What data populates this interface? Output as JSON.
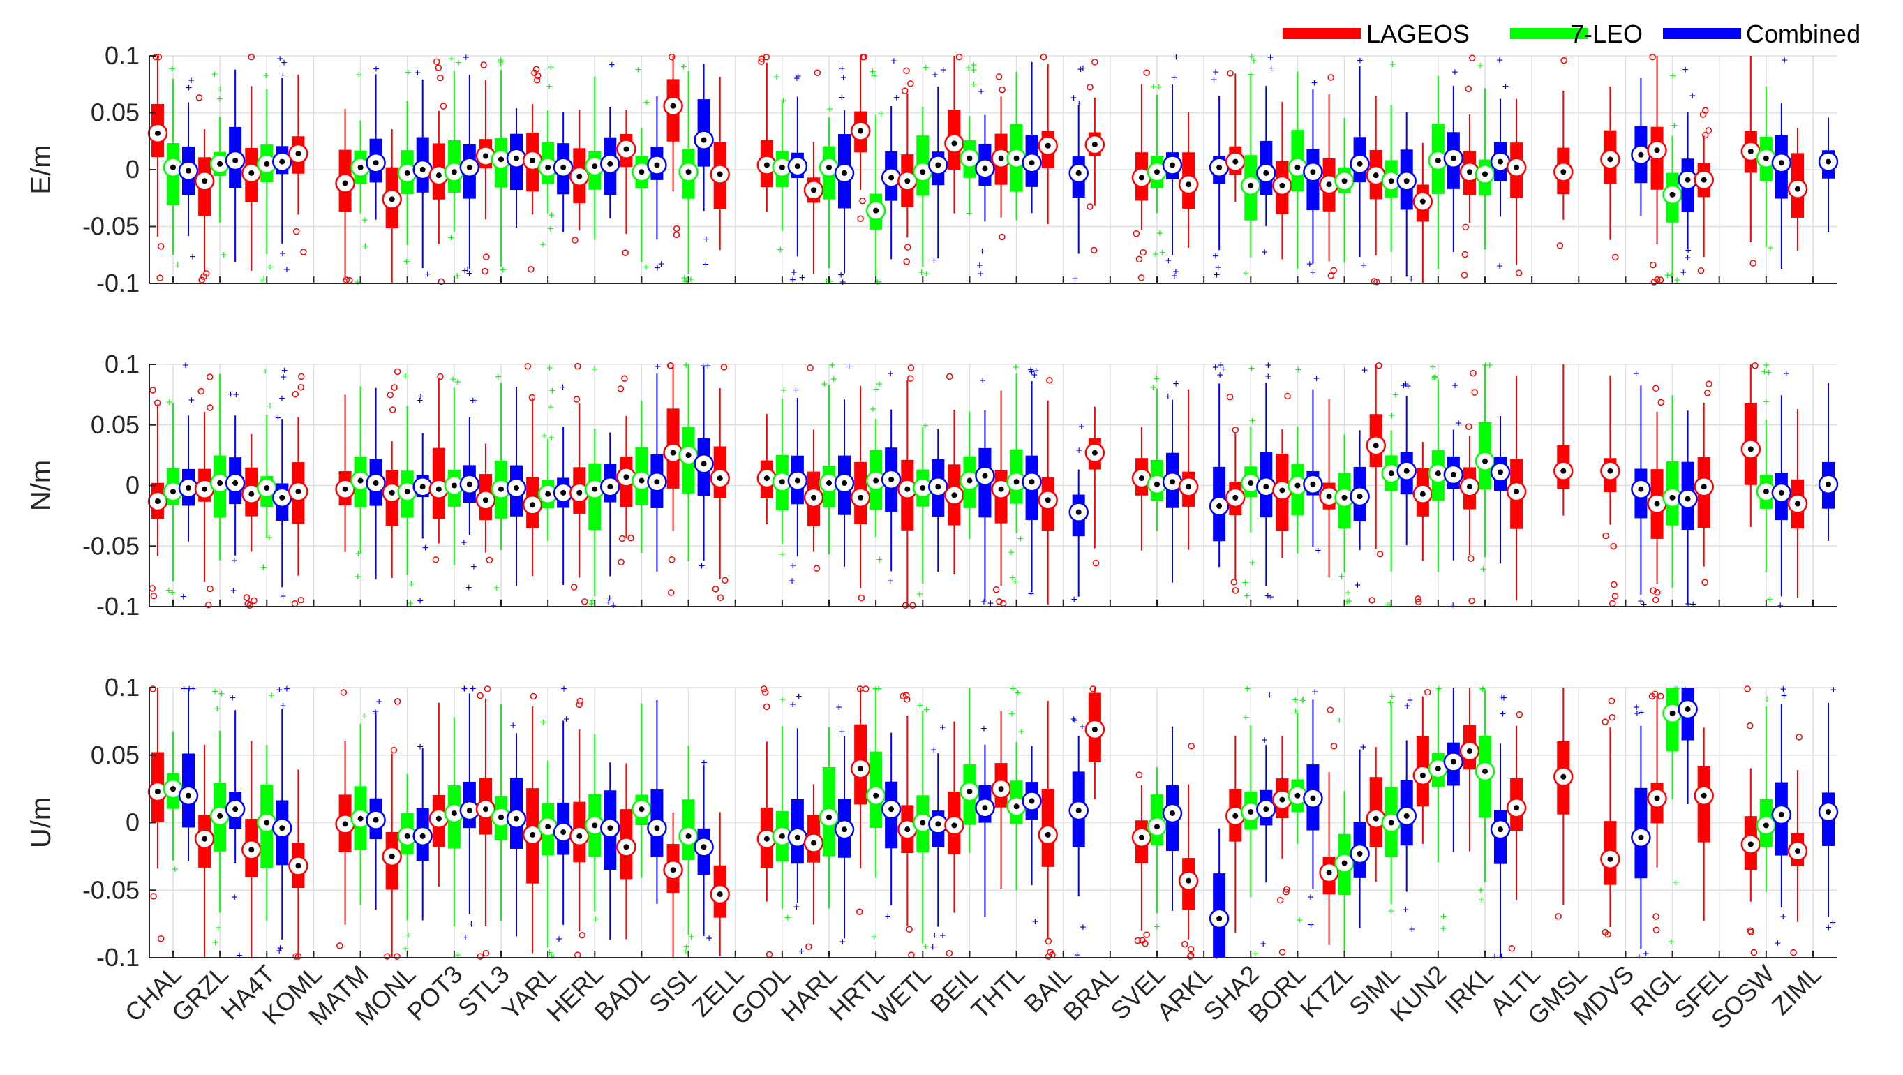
{
  "chart_data": {
    "type": "boxplot",
    "legend": [
      {
        "name": "LAGEOS",
        "color": "#ff0000"
      },
      {
        "name": "7-LEO",
        "color": "#00ff00"
      },
      {
        "name": "Combined",
        "color": "#0000ff"
      }
    ],
    "legend_position": "top-right",
    "stations": [
      "CHAL",
      "GRZL",
      "HA4T",
      "KOML",
      "MATM",
      "MONL",
      "POT3",
      "STL3",
      "YARL",
      "HERL",
      "BADL",
      "SISL",
      "ZELL",
      "GODL",
      "HARL",
      "HRTL",
      "WETL",
      "BEIL",
      "THTL",
      "BAIL",
      "BRAL",
      "SVEL",
      "ARKL",
      "SHA2",
      "BORL",
      "KTZL",
      "SIML",
      "KUN2",
      "IRKL",
      "ALTL",
      "GMSL",
      "MDVS",
      "RIGL",
      "SFEL",
      "SOSW",
      "ZIML"
    ],
    "ylim": [
      -0.1,
      0.1
    ],
    "yticks": [
      "0.1",
      "0.05",
      "0",
      "-0.05",
      "-0.1"
    ],
    "grid": true,
    "panels": [
      {
        "ylabel": "E/m",
        "medians": {
          "LAGEOS": [
            0.032,
            -0.01,
            -0.003,
            0.014,
            -0.012,
            -0.026,
            -0.005,
            0.012,
            0.008,
            -0.006,
            0.018,
            0.056,
            -0.004,
            0.004,
            -0.018,
            0.034,
            -0.01,
            0.023,
            0.01,
            0.021,
            0.022,
            -0.007,
            -0.013,
            0.007,
            -0.014,
            -0.013,
            -0.005,
            -0.028,
            -0.002,
            0.002,
            -0.002,
            0.009,
            0.017,
            -0.009,
            0.016,
            -0.017
          ],
          "7-LEO": [
            0.002,
            0.005,
            0.005,
            null,
            0.002,
            -0.003,
            -0.002,
            0.009,
            0.002,
            0.003,
            -0.002,
            -0.002,
            null,
            0.002,
            0.002,
            -0.036,
            -0.002,
            0.01,
            0.01,
            null,
            null,
            -0.002,
            null,
            -0.014,
            0.002,
            -0.01,
            -0.01,
            0.008,
            -0.004,
            null,
            null,
            null,
            -0.022,
            null,
            0.01,
            null
          ],
          "Combined": [
            -0.001,
            0.008,
            0.007,
            null,
            0.006,
            0.0,
            0.002,
            0.01,
            0.002,
            0.005,
            0.004,
            0.026,
            null,
            0.003,
            -0.003,
            -0.007,
            0.004,
            0.001,
            0.006,
            -0.003,
            null,
            0.004,
            0.002,
            -0.003,
            -0.002,
            0.005,
            -0.01,
            0.01,
            0.007,
            null,
            null,
            0.013,
            -0.009,
            null,
            0.006,
            0.007
          ]
        }
      },
      {
        "ylabel": "N/m",
        "medians": {
          "LAGEOS": [
            -0.013,
            -0.003,
            -0.007,
            -0.005,
            -0.003,
            -0.006,
            -0.003,
            -0.012,
            -0.016,
            -0.006,
            0.007,
            0.027,
            0.006,
            0.006,
            -0.01,
            -0.01,
            -0.003,
            -0.008,
            -0.003,
            -0.012,
            0.027,
            0.006,
            -0.001,
            -0.01,
            -0.004,
            -0.009,
            0.033,
            -0.007,
            -0.001,
            -0.005,
            0.012,
            0.012,
            -0.015,
            -0.001,
            0.03,
            -0.015
          ],
          "7-LEO": [
            -0.005,
            0.002,
            -0.002,
            null,
            0.004,
            -0.005,
            0.0,
            -0.003,
            -0.007,
            -0.003,
            0.004,
            0.025,
            null,
            0.003,
            0.002,
            0.004,
            -0.002,
            0.004,
            0.003,
            null,
            null,
            0.001,
            null,
            0.002,
            0.0,
            -0.01,
            0.01,
            0.01,
            0.02,
            null,
            null,
            null,
            -0.01,
            null,
            -0.005,
            null
          ],
          "Combined": [
            -0.002,
            0.002,
            -0.01,
            null,
            0.002,
            -0.001,
            0.001,
            -0.002,
            -0.006,
            -0.001,
            0.003,
            0.018,
            null,
            0.004,
            0.002,
            0.005,
            -0.001,
            0.008,
            0.003,
            -0.022,
            null,
            0.003,
            -0.017,
            -0.001,
            0.001,
            -0.009,
            0.012,
            0.009,
            0.011,
            null,
            null,
            -0.003,
            -0.011,
            null,
            -0.006,
            0.001
          ]
        }
      },
      {
        "ylabel": "U/m",
        "medians": {
          "LAGEOS": [
            0.023,
            -0.012,
            -0.02,
            -0.032,
            -0.001,
            -0.025,
            0.003,
            0.01,
            -0.009,
            -0.01,
            -0.018,
            -0.035,
            -0.053,
            -0.012,
            -0.015,
            0.04,
            -0.005,
            -0.002,
            0.025,
            -0.009,
            0.069,
            -0.011,
            -0.043,
            0.005,
            0.017,
            -0.037,
            0.003,
            0.035,
            0.053,
            0.011,
            0.034,
            -0.027,
            0.018,
            0.02,
            -0.016,
            -0.021
          ],
          "7-LEO": [
            0.025,
            0.005,
            0.0,
            null,
            0.003,
            -0.01,
            0.007,
            0.004,
            -0.003,
            -0.002,
            0.01,
            -0.01,
            null,
            -0.01,
            0.004,
            0.02,
            0.0,
            0.023,
            0.012,
            null,
            null,
            -0.003,
            null,
            0.008,
            0.02,
            -0.03,
            0.0,
            0.04,
            0.038,
            null,
            null,
            null,
            0.081,
            null,
            -0.002,
            null
          ],
          "Combined": [
            0.02,
            0.01,
            -0.004,
            null,
            0.002,
            -0.01,
            0.009,
            0.003,
            -0.007,
            -0.004,
            -0.004,
            -0.018,
            null,
            -0.011,
            -0.005,
            0.01,
            -0.001,
            0.011,
            0.016,
            0.009,
            null,
            0.007,
            -0.071,
            0.01,
            0.018,
            -0.023,
            0.005,
            0.045,
            -0.005,
            null,
            null,
            -0.011,
            0.084,
            null,
            0.006,
            0.008
          ]
        }
      }
    ]
  }
}
